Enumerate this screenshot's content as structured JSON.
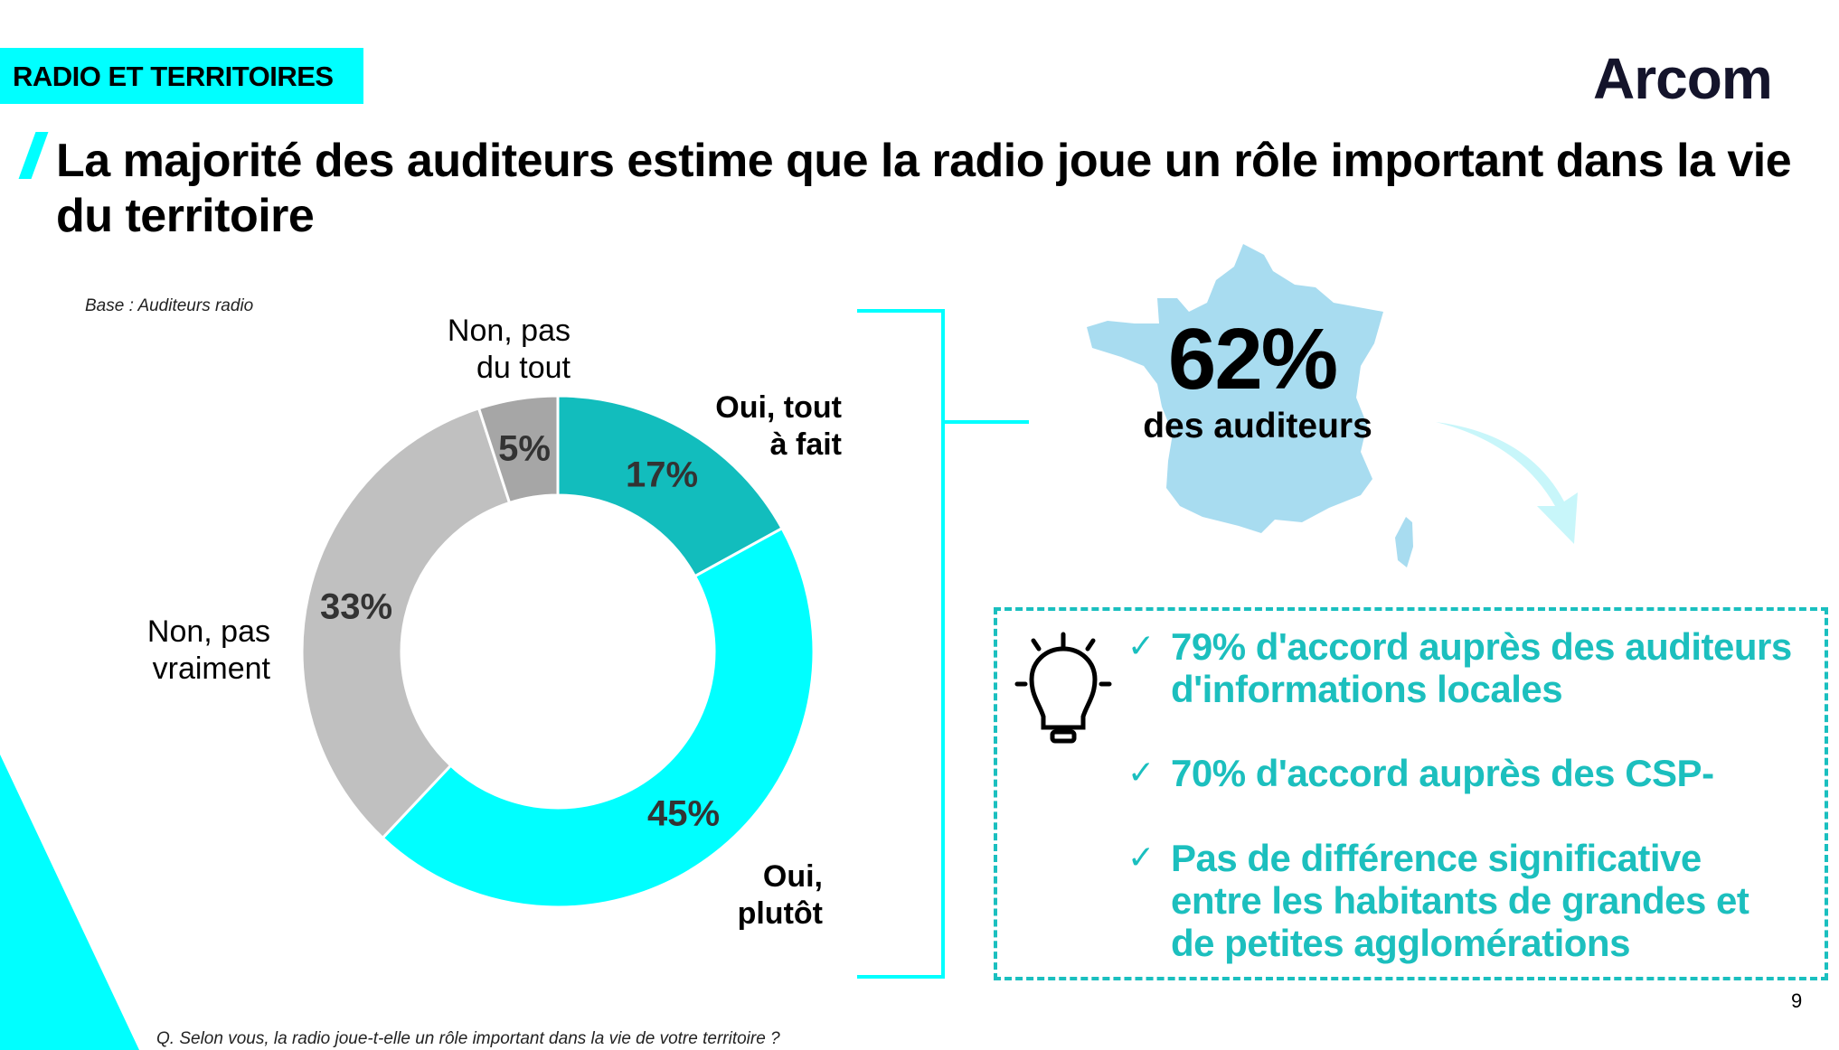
{
  "header": {
    "section_tag": "RADIO ET TERRITOIRES",
    "logo_text": "Arcom",
    "title": "La majorité des auditeurs estime que la radio joue un rôle important dans la vie du territoire"
  },
  "base_note": "Base : Auditeurs radio",
  "chart_data": {
    "type": "pie",
    "variant": "donut",
    "start": "top, clockwise",
    "categories": [
      "Oui, tout à fait",
      "Oui, plutôt",
      "Non, pas vraiment",
      "Non, pas du tout"
    ],
    "values": [
      17,
      45,
      33,
      5
    ],
    "value_labels": [
      "17%",
      "45%",
      "33%",
      "5%"
    ],
    "colors": [
      "#12bdbd",
      "#00ffff",
      "#c0c0c0",
      "#a6a6a6"
    ]
  },
  "labels": {
    "oui_tout_line1": "Oui, tout",
    "oui_tout_line2": "à fait",
    "oui_plutot_line1": "Oui,",
    "oui_plutot_line2": "plutôt",
    "non_vraiment_line1": "Non, pas",
    "non_vraiment_line2": "vraiment",
    "non_tout_line1": "Non, pas",
    "non_tout_line2": "du tout"
  },
  "highlight": {
    "value": "62%",
    "caption": "des auditeurs",
    "map_color": "#a8dcf0"
  },
  "insights": {
    "icon": "lightbulb-icon",
    "accent": "#1abfbf",
    "items": [
      {
        "line1": "79% d'accord auprès des auditeurs",
        "line2": "d'informations locales"
      },
      {
        "line1": "70% d'accord auprès des CSP-"
      },
      {
        "line1": "Pas de différence significative",
        "line2": "entre les habitants de grandes et",
        "line3": "de petites agglomérations"
      }
    ]
  },
  "footer": {
    "question": "Q. Selon vous, la radio joue-t-elle un rôle important dans la vie de votre territoire ?",
    "page_number": "9"
  }
}
